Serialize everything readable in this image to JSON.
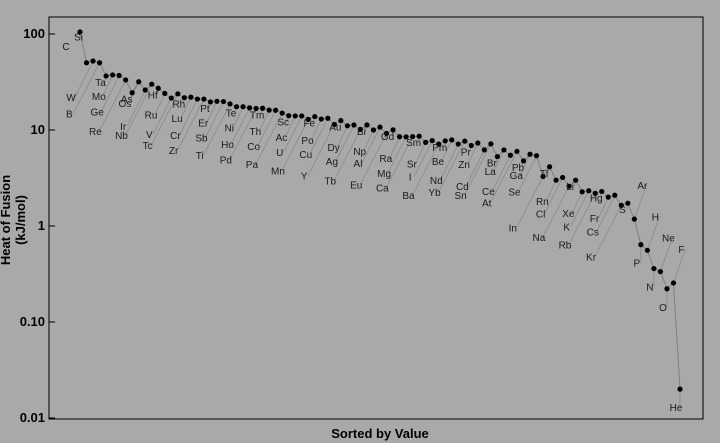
{
  "chart_data": {
    "type": "scatter",
    "xlabel": "Sorted by Value",
    "ylabel": "Heat of Fusion (kJ/mol)",
    "yscale": "log",
    "ylim": [
      0.01,
      200
    ],
    "yticks": [
      "0.01",
      "0.10",
      "1",
      "10",
      "100"
    ],
    "grid": false,
    "leader_color": "#8a8a8a",
    "point_color": "#000000",
    "points": [
      {
        "element": "C",
        "value": 105
      },
      {
        "element": "Si",
        "value": 50.21
      },
      {
        "element": "W",
        "value": 52.31
      },
      {
        "element": "B",
        "value": 50.2
      },
      {
        "element": "Ta",
        "value": 36.57
      },
      {
        "element": "Mo",
        "value": 37.48
      },
      {
        "element": "Ge",
        "value": 36.94
      },
      {
        "element": "Re",
        "value": 33.2
      },
      {
        "element": "As",
        "value": 24.44
      },
      {
        "element": "Os",
        "value": 31.8
      },
      {
        "element": "Ir",
        "value": 26.1
      },
      {
        "element": "Nb",
        "value": 30
      },
      {
        "element": "Hf",
        "value": 27.2
      },
      {
        "element": "Ru",
        "value": 24.06
      },
      {
        "element": "V",
        "value": 21.5
      },
      {
        "element": "Tc",
        "value": 23.81
      },
      {
        "element": "Rh",
        "value": 21.7
      },
      {
        "element": "Lu",
        "value": 22
      },
      {
        "element": "Cr",
        "value": 21
      },
      {
        "element": "Zr",
        "value": 21
      },
      {
        "element": "Pt",
        "value": 19.6
      },
      {
        "element": "Er",
        "value": 19.9
      },
      {
        "element": "Sb",
        "value": 19.79
      },
      {
        "element": "Ti",
        "value": 18.7
      },
      {
        "element": "Te",
        "value": 17.49
      },
      {
        "element": "Ni",
        "value": 17.48
      },
      {
        "element": "Ho",
        "value": 17
      },
      {
        "element": "Pd",
        "value": 16.74
      },
      {
        "element": "Tm",
        "value": 16.84
      },
      {
        "element": "Th",
        "value": 16.1
      },
      {
        "element": "Co",
        "value": 16.06
      },
      {
        "element": "Pa",
        "value": 15
      },
      {
        "element": "Sc",
        "value": 14.1
      },
      {
        "element": "Ac",
        "value": 14
      },
      {
        "element": "U",
        "value": 14
      },
      {
        "element": "Mn",
        "value": 12.91
      },
      {
        "element": "Fe",
        "value": 13.81
      },
      {
        "element": "Po",
        "value": 13
      },
      {
        "element": "Cu",
        "value": 13.26
      },
      {
        "element": "Y",
        "value": 11.42
      },
      {
        "element": "Au",
        "value": 12.55
      },
      {
        "element": "Dy",
        "value": 11.06
      },
      {
        "element": "Ag",
        "value": 11.28
      },
      {
        "element": "Tb",
        "value": 10.15
      },
      {
        "element": "Bi",
        "value": 11.3
      },
      {
        "element": "Np",
        "value": 10
      },
      {
        "element": "Al",
        "value": 10.71
      },
      {
        "element": "Eu",
        "value": 9.21
      },
      {
        "element": "Gd",
        "value": 10.05
      },
      {
        "element": "Ra",
        "value": 8.5
      },
      {
        "element": "Mg",
        "value": 8.48
      },
      {
        "element": "Ca",
        "value": 8.54
      },
      {
        "element": "Sm",
        "value": 8.62
      },
      {
        "element": "Sr",
        "value": 7.43
      },
      {
        "element": "I",
        "value": 7.76
      },
      {
        "element": "Ba",
        "value": 7.12
      },
      {
        "element": "Pm",
        "value": 7.7
      },
      {
        "element": "Be",
        "value": 7.895
      },
      {
        "element": "Nd",
        "value": 7.14
      },
      {
        "element": "Yb",
        "value": 7.66
      },
      {
        "element": "Pr",
        "value": 6.89
      },
      {
        "element": "Zn",
        "value": 7.32
      },
      {
        "element": "Cd",
        "value": 6.21
      },
      {
        "element": "Sn",
        "value": 7.173
      },
      {
        "element": "Br",
        "value": 5.286
      },
      {
        "element": "La",
        "value": 6.2
      },
      {
        "element": "Ce",
        "value": 5.46
      },
      {
        "element": "At",
        "value": 6
      },
      {
        "element": "Pb",
        "value": 4.77
      },
      {
        "element": "Ga",
        "value": 5.59
      },
      {
        "element": "Se",
        "value": 5.4
      },
      {
        "element": "In",
        "value": 3.281
      },
      {
        "element": "Tl",
        "value": 4.14
      },
      {
        "element": "Rn",
        "value": 3
      },
      {
        "element": "Cl",
        "value": 3.203
      },
      {
        "element": "Na",
        "value": 2.6
      },
      {
        "element": "Li",
        "value": 3
      },
      {
        "element": "Xe",
        "value": 2.27
      },
      {
        "element": "K",
        "value": 2.33
      },
      {
        "element": "Rb",
        "value": 2.19
      },
      {
        "element": "Hg",
        "value": 2.29
      },
      {
        "element": "Fr",
        "value": 2
      },
      {
        "element": "Cs",
        "value": 2.09
      },
      {
        "element": "Kr",
        "value": 1.64
      },
      {
        "element": "S",
        "value": 1.727
      },
      {
        "element": "Ar",
        "value": 1.18
      },
      {
        "element": "P",
        "value": 0.64
      },
      {
        "element": "H",
        "value": 0.558
      },
      {
        "element": "N",
        "value": 0.36
      },
      {
        "element": "Ne",
        "value": 0.335
      },
      {
        "element": "O",
        "value": 0.222
      },
      {
        "element": "F",
        "value": 0.255
      },
      {
        "element": "He",
        "value": 0.02
      }
    ]
  }
}
